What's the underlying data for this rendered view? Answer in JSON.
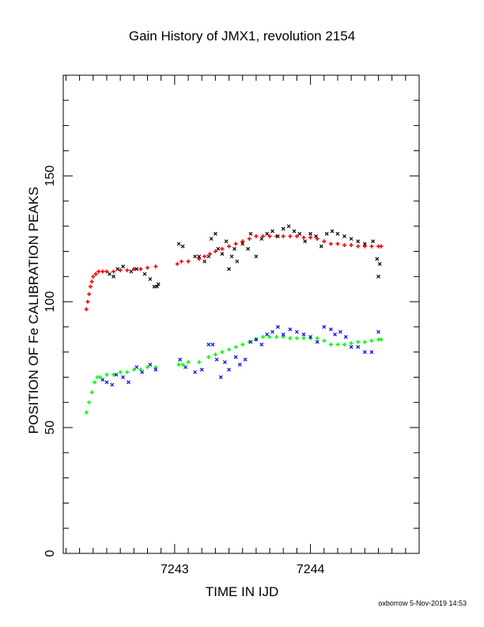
{
  "chart_data": {
    "type": "scatter",
    "title": "Gain History of JMX1, revolution 2154",
    "xlabel": "TIME IN IJD",
    "ylabel": "POSITION OF Fe CALIBRATION PEAKS",
    "xlim": [
      7242.18,
      7244.8
    ],
    "ylim": [
      0,
      190
    ],
    "xticks": [
      7243,
      7244
    ],
    "yticks": [
      0,
      50,
      100,
      150
    ],
    "grid": false,
    "series": [
      {
        "color": "#ff0000",
        "marker": "+",
        "x": [
          7242.35,
          7242.36,
          7242.37,
          7242.38,
          7242.39,
          7242.4,
          7242.42,
          7242.44,
          7242.47,
          7242.5,
          7242.55,
          7242.6,
          7242.65,
          7242.7,
          7242.75,
          7242.8,
          7242.86,
          7243.02,
          7243.05,
          7243.1,
          7243.18,
          7243.22,
          7243.26,
          7243.3,
          7243.35,
          7243.4,
          7243.45,
          7243.5,
          7243.55,
          7243.6,
          7243.65,
          7243.7,
          7243.75,
          7243.8,
          7243.85,
          7243.9,
          7243.95,
          7244.0,
          7244.05,
          7244.1,
          7244.15,
          7244.2,
          7244.25,
          7244.3,
          7244.35,
          7244.4,
          7244.45,
          7244.5,
          7244.52
        ],
        "y": [
          97,
          100,
          103,
          106,
          108,
          110,
          111,
          112,
          112,
          112,
          112,
          112.5,
          112.5,
          113,
          113,
          113.5,
          114,
          115,
          116,
          116,
          117,
          118,
          119,
          120,
          121,
          122,
          123,
          124,
          125,
          126,
          126,
          126,
          126,
          126,
          126,
          126,
          125.5,
          125.5,
          125,
          124,
          123,
          123,
          122.5,
          122.5,
          122,
          122,
          122,
          122,
          122
        ]
      },
      {
        "color": "#000000",
        "marker": "x",
        "x": [
          7242.52,
          7242.55,
          7242.58,
          7242.62,
          7242.68,
          7242.72,
          7242.78,
          7242.82,
          7242.85,
          7242.87,
          7242.88,
          7243.03,
          7243.06,
          7243.15,
          7243.18,
          7243.22,
          7243.25,
          7243.27,
          7243.3,
          7243.32,
          7243.35,
          7243.38,
          7243.4,
          7243.42,
          7243.44,
          7243.46,
          7243.5,
          7243.54,
          7243.56,
          7243.6,
          7243.64,
          7243.68,
          7243.72,
          7243.76,
          7243.8,
          7243.84,
          7243.88,
          7243.92,
          7243.96,
          7244.0,
          7244.04,
          7244.08,
          7244.12,
          7244.16,
          7244.2,
          7244.25,
          7244.3,
          7244.35,
          7244.4,
          7244.46,
          7244.49,
          7244.5,
          7244.51
        ],
        "y": [
          111,
          110,
          113,
          114,
          112,
          113,
          111,
          109,
          106,
          106,
          107,
          123,
          122,
          118,
          118,
          116,
          118,
          125,
          127,
          121,
          119,
          124,
          113,
          118,
          121,
          116,
          123,
          121,
          127,
          118,
          125,
          127,
          128,
          126,
          129,
          130,
          128,
          127,
          124,
          127,
          126,
          122,
          127,
          128,
          127,
          126,
          125,
          124,
          123,
          124,
          117,
          110,
          115
        ]
      },
      {
        "color": "#00ff00",
        "marker": "+",
        "x": [
          7242.35,
          7242.37,
          7242.39,
          7242.41,
          7242.43,
          7242.45,
          7242.5,
          7242.55,
          7242.6,
          7242.65,
          7242.7,
          7242.75,
          7242.8,
          7242.86,
          7243.03,
          7243.06,
          7243.1,
          7243.18,
          7243.25,
          7243.3,
          7243.35,
          7243.4,
          7243.45,
          7243.5,
          7243.55,
          7243.6,
          7243.65,
          7243.7,
          7243.75,
          7243.8,
          7243.85,
          7243.9,
          7243.95,
          7244.0,
          7244.05,
          7244.1,
          7244.15,
          7244.2,
          7244.25,
          7244.3,
          7244.35,
          7244.4,
          7244.45,
          7244.5,
          7244.52
        ],
        "y": [
          56,
          60,
          64,
          68,
          70,
          70,
          71,
          71,
          72,
          72,
          73,
          73,
          74,
          74,
          75,
          75,
          76,
          76,
          78,
          79,
          80,
          81,
          82,
          83,
          84,
          85,
          86,
          86,
          86,
          86,
          85.5,
          85.5,
          85.5,
          85.5,
          85.5,
          84.5,
          83,
          83,
          83,
          83.5,
          84,
          84,
          84.5,
          85,
          85
        ]
      },
      {
        "color": "#0000ff",
        "marker": "x",
        "x": [
          7242.47,
          7242.5,
          7242.54,
          7242.57,
          7242.62,
          7242.66,
          7242.72,
          7242.76,
          7242.82,
          7242.86,
          7243.04,
          7243.08,
          7243.15,
          7243.2,
          7243.25,
          7243.28,
          7243.31,
          7243.34,
          7243.37,
          7243.4,
          7243.45,
          7243.48,
          7243.52,
          7243.56,
          7243.6,
          7243.64,
          7243.68,
          7243.72,
          7243.76,
          7243.8,
          7243.85,
          7243.9,
          7243.95,
          7244.0,
          7244.05,
          7244.1,
          7244.15,
          7244.18,
          7244.22,
          7244.26,
          7244.3,
          7244.35,
          7244.4,
          7244.45,
          7244.5
        ],
        "y": [
          69,
          68,
          67,
          71,
          70,
          68,
          74,
          72,
          75,
          73,
          77,
          74,
          72,
          73,
          83,
          83,
          77,
          70,
          76,
          73,
          78,
          75,
          77,
          84,
          85,
          83,
          87,
          88,
          90,
          87,
          89,
          88,
          87,
          86,
          84,
          90,
          89,
          87,
          88,
          86,
          82,
          82,
          80,
          80,
          88
        ]
      }
    ],
    "footer": "oxborrow  5-Nov-2019 14:53"
  }
}
